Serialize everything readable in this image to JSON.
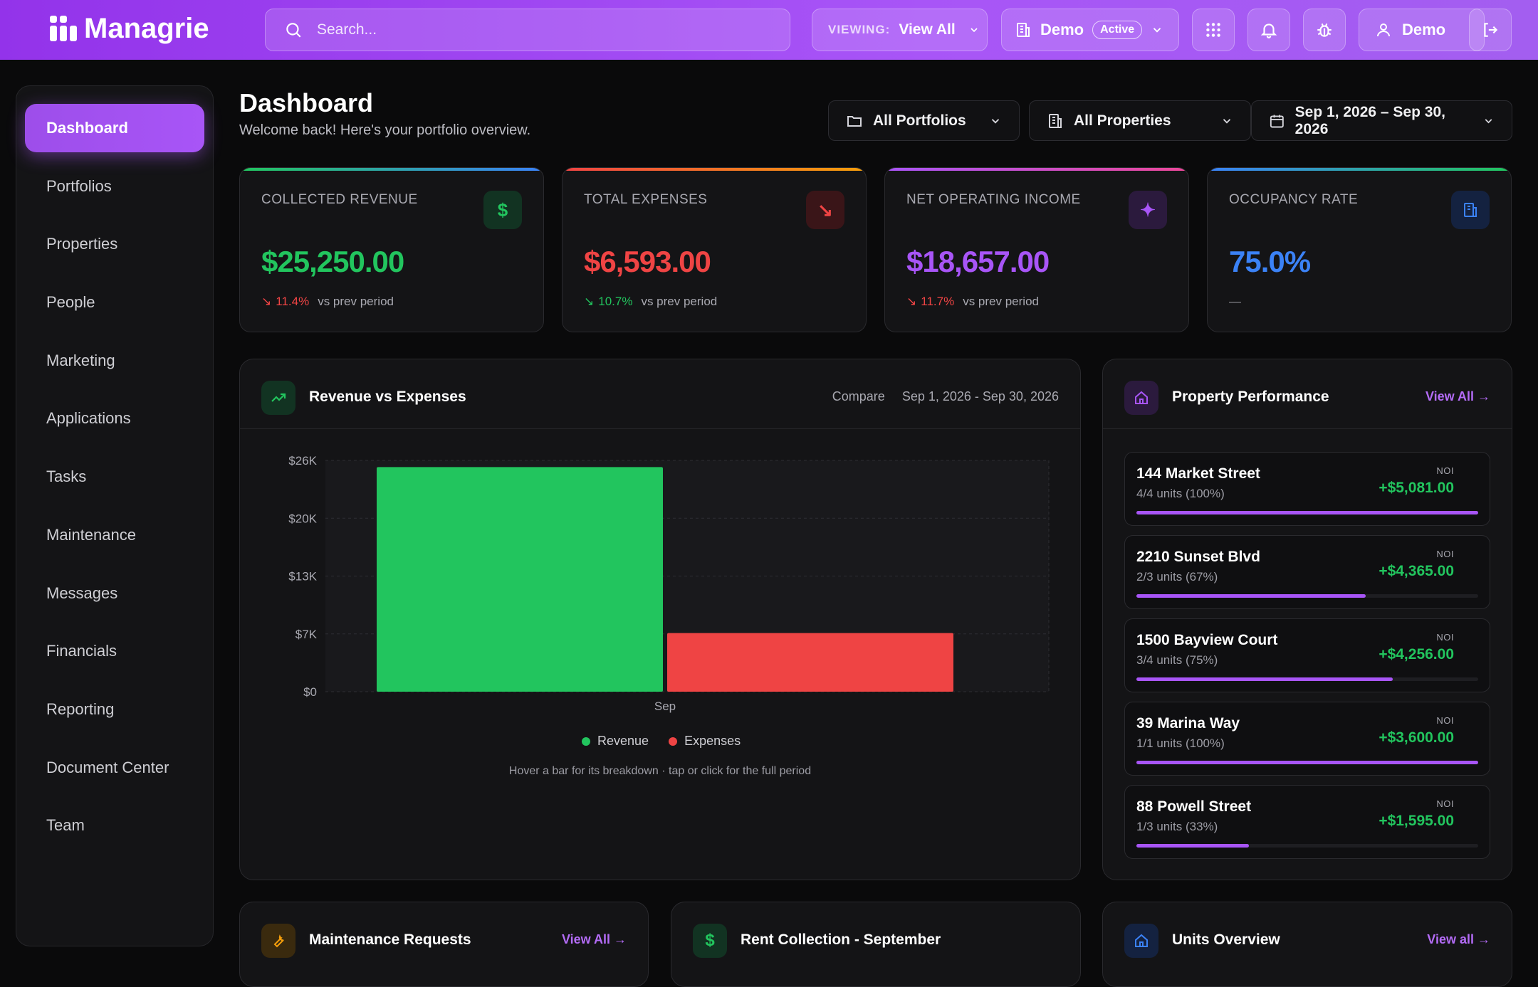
{
  "app": {
    "name": "Managrie"
  },
  "topbar": {
    "search_placeholder": "Search...",
    "viewing_label": "VIEWING:",
    "viewing_value": "View All",
    "company": "Demo",
    "company_status": "Active",
    "user": "Demo"
  },
  "sidebar": {
    "items": [
      {
        "label": "Dashboard",
        "active": true
      },
      {
        "label": "Portfolios"
      },
      {
        "label": "Properties"
      },
      {
        "label": "People"
      },
      {
        "label": "Marketing"
      },
      {
        "label": "Applications"
      },
      {
        "label": "Tasks"
      },
      {
        "label": "Maintenance"
      },
      {
        "label": "Messages"
      },
      {
        "label": "Financials"
      },
      {
        "label": "Reporting"
      },
      {
        "label": "Document Center"
      },
      {
        "label": "Team"
      }
    ]
  },
  "header": {
    "title": "Dashboard",
    "subtitle": "Welcome back! Here's your portfolio overview.",
    "portfolio_filter": "All Portfolios",
    "property_filter": "All Properties",
    "date_range": "Sep 1, 2026 – Sep 30, 2026"
  },
  "kpis": [
    {
      "label": "COLLECTED REVENUE",
      "value": "$25,250.00",
      "change": "11.4%",
      "note": "vs prev period",
      "accent": "#22c55e",
      "icon": "dollar-icon"
    },
    {
      "label": "TOTAL EXPENSES",
      "value": "$6,593.00",
      "change": "10.7%",
      "note": "vs prev period",
      "accent": "#ef4444",
      "icon": "trending-down-icon"
    },
    {
      "label": "NET OPERATING INCOME",
      "value": "$18,657.00",
      "change": "11.7%",
      "note": "vs prev period",
      "accent": "#a855f7",
      "icon": "sparkles-icon"
    },
    {
      "label": "OCCUPANCY RATE",
      "value": "75.0%",
      "change": "",
      "note": "—",
      "accent": "#3b82f6",
      "icon": "building-icon"
    }
  ],
  "revenue_panel": {
    "title": "Revenue vs Expenses",
    "compare_label": "Compare",
    "compare_range": "Sep 1, 2026 - Sep 30, 2026",
    "hint": "Hover a bar for its breakdown · tap or click for the full period"
  },
  "chart_data": {
    "type": "bar",
    "categories": [
      "Sep"
    ],
    "series": [
      {
        "name": "Revenue",
        "values": [
          25250
        ],
        "color": "#22c55e"
      },
      {
        "name": "Expenses",
        "values": [
          6593
        ],
        "color": "#ef4444"
      }
    ],
    "ylim": [
      0,
      26000
    ],
    "yticks": [
      "$0",
      "$7K",
      "$13K",
      "$20K",
      "$26K"
    ],
    "ytick_values": [
      0,
      6500,
      13000,
      19500,
      26000
    ],
    "grid": true,
    "legend": "bottom"
  },
  "performance": {
    "title": "Property Performance",
    "link": "View All →",
    "noi_label": "NOI",
    "properties": [
      {
        "name": "144 Market Street",
        "units": "4/4 units (100%)",
        "noi": "+$5,081.00",
        "occupancy": 1.0
      },
      {
        "name": "2210 Sunset Blvd",
        "units": "2/3 units (67%)",
        "noi": "+$4,365.00",
        "occupancy": 0.67
      },
      {
        "name": "1500 Bayview Court",
        "units": "3/4 units (75%)",
        "noi": "+$4,256.00",
        "occupancy": 0.75
      },
      {
        "name": "39 Marina Way",
        "units": "1/1 units (100%)",
        "noi": "+$3,600.00",
        "occupancy": 1.0
      },
      {
        "name": "88 Powell Street",
        "units": "1/3 units (33%)",
        "noi": "+$1,595.00",
        "occupancy": 0.33
      }
    ]
  },
  "bottom_panels": {
    "maintenance": {
      "title": "Maintenance Requests",
      "link": "View All →"
    },
    "rent": {
      "title": "Rent Collection - September"
    },
    "units": {
      "title": "Units Overview",
      "link": "View all →"
    }
  }
}
